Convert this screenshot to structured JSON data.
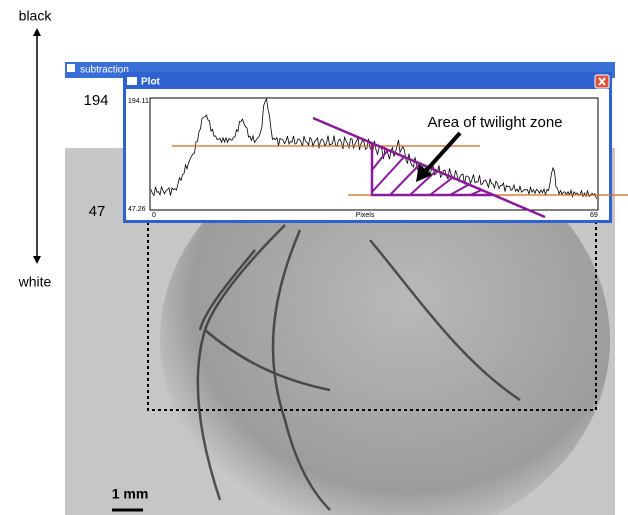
{
  "side_scale": {
    "top": "black",
    "bottom": "white"
  },
  "window": {
    "title": "subtraction",
    "labels": {
      "high": "194",
      "low": "47"
    }
  },
  "plot_window": {
    "title": "Plot",
    "y_max": "194.11",
    "y_min": "47.26",
    "x_min": "0",
    "x_label": "Pixels",
    "x_max": "69",
    "annotation": "Area of twilight zone"
  },
  "scale_bar": "1 mm"
}
